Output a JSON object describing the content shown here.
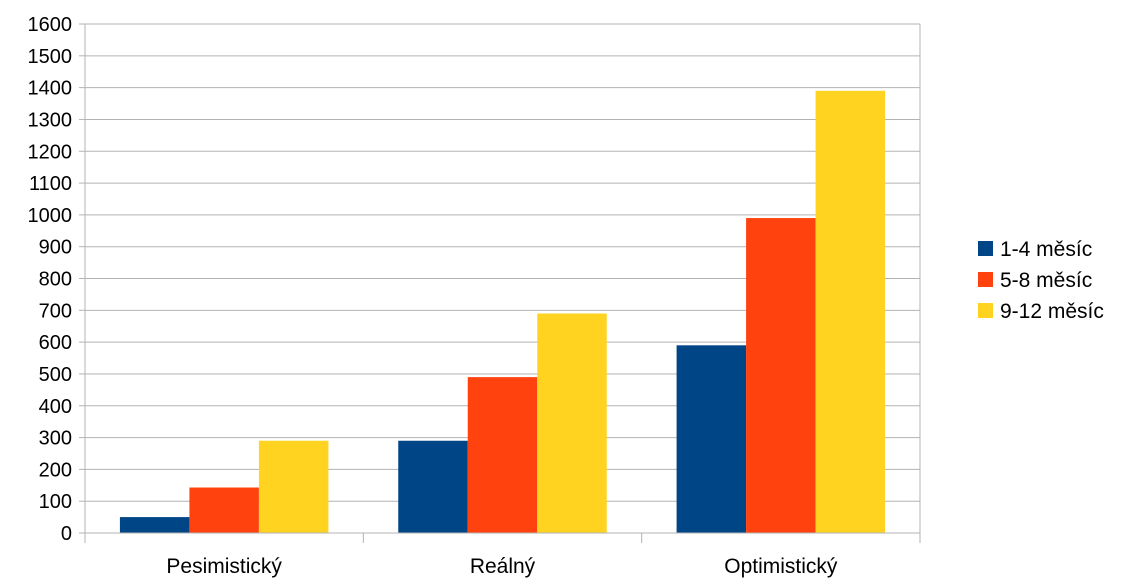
{
  "chart_data": {
    "type": "bar",
    "categories": [
      "Pesimistický",
      "Reálný",
      "Optimistický"
    ],
    "series": [
      {
        "name": "1-4 měsíc",
        "color": "#004586",
        "values": [
          50,
          290,
          590
        ]
      },
      {
        "name": "5-8 měsíc",
        "color": "#ff420e",
        "values": [
          143,
          490,
          990
        ]
      },
      {
        "name": "9-12 měsíc",
        "color": "#ffd320",
        "values": [
          290,
          690,
          1390
        ]
      }
    ],
    "title": "",
    "xlabel": "",
    "ylabel": "",
    "ylim": [
      0,
      1600
    ],
    "yticks": [
      "0",
      "100",
      "200",
      "300",
      "400",
      "500",
      "600",
      "700",
      "800",
      "900",
      "1000",
      "1100",
      "1200",
      "1300",
      "1400",
      "1500",
      "1600"
    ],
    "grid": true,
    "legend_position": "right"
  }
}
